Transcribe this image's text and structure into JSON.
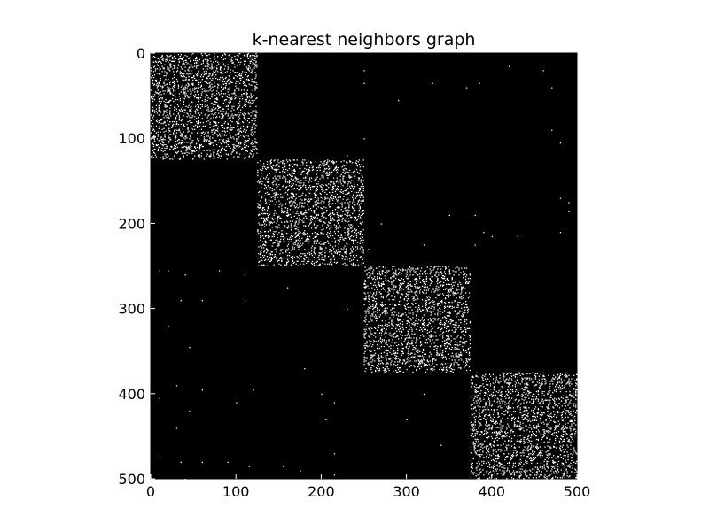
{
  "chart_data": {
    "type": "heatmap",
    "title": "k-nearest neighbors graph",
    "xlabel": "",
    "ylabel": "",
    "n": 500,
    "xlim": [
      0,
      500
    ],
    "ylim": [
      500,
      0
    ],
    "x_ticks": [
      0,
      100,
      200,
      300,
      400,
      500
    ],
    "y_ticks": [
      0,
      100,
      200,
      300,
      400,
      500
    ],
    "colormap": "gray",
    "background_color": "#000000",
    "point_color": "#ffffff",
    "blocks": [
      {
        "start": 0,
        "end": 125,
        "density": 0.11
      },
      {
        "start": 125,
        "end": 250,
        "density": 0.11
      },
      {
        "start": 250,
        "end": 375,
        "density": 0.11
      },
      {
        "start": 375,
        "end": 500,
        "density": 0.11
      }
    ],
    "off_block_points": [
      [
        420,
        15
      ],
      [
        460,
        20
      ],
      [
        470,
        40
      ],
      [
        470,
        90
      ],
      [
        480,
        105
      ],
      [
        330,
        35
      ],
      [
        370,
        40
      ],
      [
        385,
        35
      ],
      [
        250,
        20
      ],
      [
        250,
        35
      ],
      [
        250,
        100
      ],
      [
        290,
        55
      ],
      [
        380,
        190
      ],
      [
        480,
        170
      ],
      [
        490,
        175
      ],
      [
        490,
        185
      ],
      [
        480,
        210
      ],
      [
        390,
        210
      ],
      [
        400,
        215
      ],
      [
        430,
        215
      ],
      [
        350,
        190
      ],
      [
        270,
        200
      ],
      [
        255,
        230
      ],
      [
        320,
        225
      ],
      [
        380,
        225
      ],
      [
        10,
        255
      ],
      [
        20,
        255
      ],
      [
        40,
        260
      ],
      [
        80,
        255
      ],
      [
        110,
        260
      ],
      [
        35,
        290
      ],
      [
        60,
        290
      ],
      [
        110,
        290
      ],
      [
        20,
        320
      ],
      [
        45,
        345
      ],
      [
        160,
        275
      ],
      [
        230,
        300
      ],
      [
        180,
        370
      ],
      [
        30,
        390
      ],
      [
        60,
        395
      ],
      [
        120,
        395
      ],
      [
        200,
        400
      ],
      [
        10,
        405
      ],
      [
        45,
        420
      ],
      [
        100,
        410
      ],
      [
        215,
        410
      ],
      [
        30,
        440
      ],
      [
        215,
        470
      ],
      [
        10,
        475
      ],
      [
        35,
        480
      ],
      [
        60,
        480
      ],
      [
        90,
        480
      ],
      [
        115,
        485
      ],
      [
        155,
        485
      ],
      [
        175,
        490
      ],
      [
        215,
        495
      ],
      [
        205,
        430
      ],
      [
        40,
        500
      ],
      [
        230,
        120
      ],
      [
        320,
        400
      ],
      [
        300,
        430
      ],
      [
        340,
        460
      ]
    ]
  }
}
